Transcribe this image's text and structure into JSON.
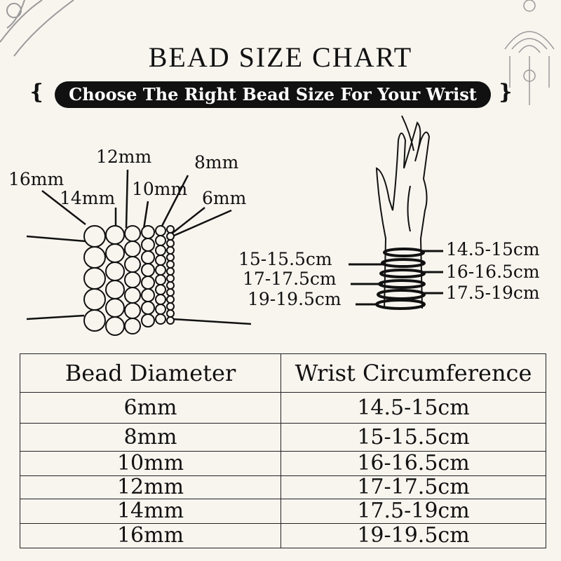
{
  "title": "BEAD SIZE CHART",
  "subtitle": "Choose The Right Bead Size For Your Wrist",
  "colors": {
    "background": "#f8f5ef",
    "ink": "#111111",
    "ornament": "#9a9a9a"
  },
  "bead_labels": [
    "16mm",
    "14mm",
    "12mm",
    "10mm",
    "8mm",
    "6mm"
  ],
  "wrist_labels_left": [
    "15-15.5cm",
    "17-17.5cm",
    "19-19.5cm"
  ],
  "wrist_labels_right": [
    "14.5-15cm",
    "16-16.5cm",
    "17.5-19cm"
  ],
  "table": {
    "headers": [
      "Bead Diameter",
      "Wrist Circumference"
    ],
    "rows": [
      [
        "6mm",
        "14.5-15cm"
      ],
      [
        "8mm",
        "15-15.5cm"
      ],
      [
        "10mm",
        "16-16.5cm"
      ],
      [
        "12mm",
        "17-17.5cm"
      ],
      [
        "14mm",
        "17.5-19cm"
      ],
      [
        "16mm",
        "19-19.5cm"
      ]
    ]
  }
}
